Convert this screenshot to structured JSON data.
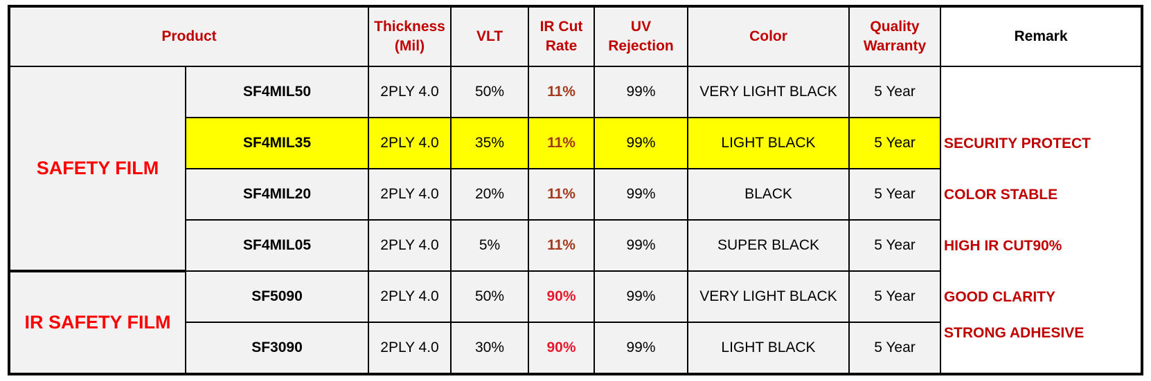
{
  "header": {
    "product": "Product",
    "columns": [
      [
        "Thickness",
        "(Mil)"
      ],
      [
        "VLT"
      ],
      [
        "IR Cut",
        "Rate"
      ],
      [
        "UV",
        "Rejection"
      ],
      [
        "Color"
      ],
      [
        "Quality",
        "Warranty"
      ]
    ],
    "remark": "Remark"
  },
  "groups": [
    {
      "name": "SAFETY FILM",
      "rows": [
        {
          "product": "SF4MIL50",
          "thickness": "2PLY 4.0",
          "vlt": "50%",
          "ir_cut": "11%",
          "ir_color": "#a33a1c",
          "uv": "99%",
          "color": "VERY LIGHT BLACK",
          "warranty": "5 Year"
        },
        {
          "product": "SF4MIL35",
          "thickness": "2PLY 4.0",
          "vlt": "35%",
          "ir_cut": "11%",
          "ir_color": "#a33a1c",
          "uv": "99%",
          "color": "LIGHT BLACK",
          "warranty": "5 Year",
          "highlight": "#ffff00"
        },
        {
          "product": "SF4MIL20",
          "thickness": "2PLY 4.0",
          "vlt": "20%",
          "ir_cut": "11%",
          "ir_color": "#a33a1c",
          "uv": "99%",
          "color": "BLACK",
          "warranty": "5 Year"
        },
        {
          "product": "SF4MIL05",
          "thickness": "2PLY 4.0",
          "vlt": "5%",
          "ir_cut": "11%",
          "ir_color": "#a33a1c",
          "uv": "99%",
          "color": "SUPER BLACK",
          "warranty": "5 Year"
        }
      ]
    },
    {
      "name": "IR SAFETY FILM",
      "rows": [
        {
          "product": "SF5090",
          "thickness": "2PLY 4.0",
          "vlt": "50%",
          "ir_cut": "90%",
          "ir_color": "#e8192c",
          "uv": "99%",
          "color": "VERY LIGHT BLACK",
          "warranty": "5 Year"
        },
        {
          "product": "SF3090",
          "thickness": "2PLY 4.0",
          "vlt": "30%",
          "ir_cut": "90%",
          "ir_color": "#e8192c",
          "uv": "99%",
          "color": "LIGHT BLACK",
          "warranty": "5 Year"
        }
      ]
    }
  ],
  "remarks": [
    "SECURITY PROTECT",
    "COLOR STABLE",
    "HIGH IR CUT90%",
    "GOOD CLARITY",
    "STRONG ADHESIVE"
  ]
}
